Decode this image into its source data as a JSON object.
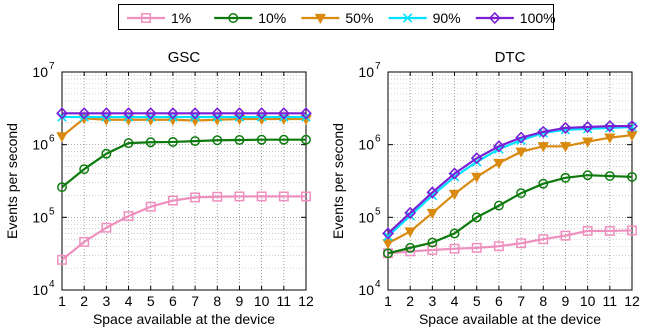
{
  "legend": [
    {
      "label": "1%",
      "color": "#ef8fbf",
      "marker": "square"
    },
    {
      "label": "10%",
      "color": "#0d7a0d",
      "marker": "circle"
    },
    {
      "label": "50%",
      "color": "#d98a0f",
      "marker": "triangle-down"
    },
    {
      "label": "90%",
      "color": "#00e0ff",
      "marker": "x"
    },
    {
      "label": "100%",
      "color": "#7a1fd6",
      "marker": "diamond"
    }
  ],
  "chart_data": [
    {
      "type": "line",
      "title": "GSC",
      "xlabel": "Space available at the device",
      "ylabel": "Events per second",
      "yscale": "log",
      "ylim": [
        10000,
        10000000
      ],
      "xlim": [
        1,
        12
      ],
      "x": [
        1,
        2,
        3,
        4,
        5,
        6,
        7,
        8,
        9,
        10,
        11,
        12
      ],
      "xticks": [
        "1",
        "2",
        "3",
        "4",
        "5",
        "6",
        "7",
        "8",
        "9",
        "10",
        "11",
        "12"
      ],
      "yticks": [
        {
          "base": "10",
          "exp": "4"
        },
        {
          "base": "10",
          "exp": "5"
        },
        {
          "base": "10",
          "exp": "6"
        },
        {
          "base": "10",
          "exp": "7"
        }
      ],
      "grid": true,
      "series": [
        {
          "name": "1%",
          "values": [
            26000,
            46000,
            72000,
            104000,
            140000,
            170000,
            188000,
            192000,
            194000,
            194000,
            194000,
            194000
          ]
        },
        {
          "name": "10%",
          "values": [
            260000,
            460000,
            750000,
            1050000,
            1080000,
            1090000,
            1120000,
            1150000,
            1160000,
            1170000,
            1170000,
            1170000
          ]
        },
        {
          "name": "50%",
          "values": [
            1300000,
            2300000,
            2200000,
            2200000,
            2200000,
            2200000,
            2150000,
            2200000,
            2250000,
            2250000,
            2250000,
            2250000
          ]
        },
        {
          "name": "90%",
          "values": [
            2400000,
            2400000,
            2400000,
            2400000,
            2400000,
            2400000,
            2400000,
            2400000,
            2400000,
            2400000,
            2400000,
            2400000
          ]
        },
        {
          "name": "100%",
          "values": [
            2700000,
            2700000,
            2700000,
            2700000,
            2700000,
            2700000,
            2700000,
            2700000,
            2700000,
            2700000,
            2700000,
            2700000
          ]
        }
      ]
    },
    {
      "type": "line",
      "title": "DTC",
      "xlabel": "Space available at the device",
      "ylabel": "Events per second",
      "yscale": "log",
      "ylim": [
        10000,
        10000000
      ],
      "xlim": [
        1,
        12
      ],
      "x": [
        1,
        2,
        3,
        4,
        5,
        6,
        7,
        8,
        9,
        10,
        11,
        12
      ],
      "xticks": [
        "1",
        "2",
        "3",
        "4",
        "5",
        "6",
        "7",
        "8",
        "9",
        "10",
        "11",
        "12"
      ],
      "yticks": [
        {
          "base": "10",
          "exp": "4"
        },
        {
          "base": "10",
          "exp": "5"
        },
        {
          "base": "10",
          "exp": "6"
        },
        {
          "base": "10",
          "exp": "7"
        }
      ],
      "grid": true,
      "series": [
        {
          "name": "1%",
          "values": [
            32000,
            34000,
            35500,
            37000,
            38000,
            40000,
            44000,
            50000,
            56000,
            65000,
            65000,
            66000
          ]
        },
        {
          "name": "10%",
          "values": [
            32000,
            38000,
            45000,
            60000,
            100000,
            145000,
            215000,
            290000,
            350000,
            380000,
            370000,
            360000
          ]
        },
        {
          "name": "50%",
          "values": [
            44000,
            64000,
            115000,
            210000,
            360000,
            560000,
            800000,
            950000,
            950000,
            1100000,
            1250000,
            1350000
          ]
        },
        {
          "name": "90%",
          "values": [
            55000,
            105000,
            200000,
            360000,
            580000,
            870000,
            1150000,
            1450000,
            1600000,
            1650000,
            1700000,
            1750000
          ]
        },
        {
          "name": "100%",
          "values": [
            60000,
            115000,
            220000,
            400000,
            650000,
            950000,
            1250000,
            1500000,
            1700000,
            1750000,
            1800000,
            1800000
          ]
        }
      ]
    }
  ]
}
